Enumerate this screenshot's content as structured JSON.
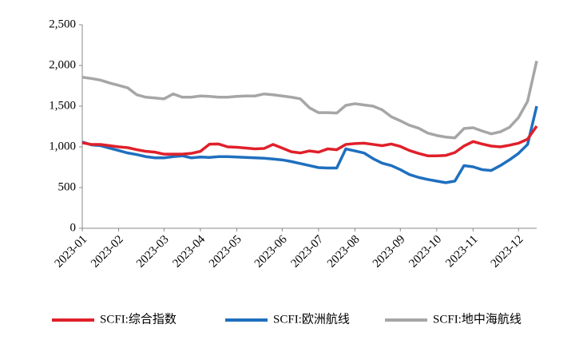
{
  "chart_data": {
    "type": "line",
    "categories": [
      "2023-01",
      null,
      null,
      null,
      "2023-02",
      null,
      null,
      null,
      null,
      "2023-03",
      null,
      null,
      null,
      "2023-04",
      null,
      null,
      null,
      "2023-05",
      null,
      null,
      null,
      null,
      "2023-06",
      null,
      null,
      null,
      "2023-07",
      null,
      null,
      null,
      "2023-08",
      null,
      null,
      null,
      null,
      "2023-09",
      null,
      null,
      null,
      "2023-10",
      null,
      null,
      null,
      "2023-11",
      null,
      null,
      null,
      null,
      "2023-12",
      null,
      null
    ],
    "series": [
      {
        "name": "SCFI:综合指数",
        "color": "#e0202a",
        "values": [
          1050,
          1030,
          1030,
          1015,
          1000,
          990,
          965,
          945,
          935,
          910,
          910,
          910,
          920,
          945,
          1033,
          1035,
          1000,
          995,
          985,
          975,
          980,
          1030,
          985,
          940,
          925,
          950,
          935,
          975,
          965,
          1030,
          1040,
          1045,
          1030,
          1015,
          1035,
          1005,
          955,
          920,
          890,
          890,
          895,
          930,
          1010,
          1065,
          1035,
          1010,
          1000,
          1020,
          1045,
          1095,
          1255
        ]
      },
      {
        "name": "SCFI:欧洲航线",
        "color": "#1f6fbf",
        "values": [
          1060,
          1025,
          1015,
          985,
          955,
          925,
          905,
          880,
          865,
          865,
          880,
          890,
          865,
          875,
          870,
          880,
          880,
          875,
          870,
          865,
          860,
          850,
          840,
          820,
          795,
          770,
          745,
          740,
          740,
          975,
          950,
          925,
          855,
          800,
          770,
          720,
          660,
          625,
          600,
          580,
          560,
          580,
          770,
          755,
          720,
          710,
          770,
          840,
          920,
          1030,
          1500
        ]
      },
      {
        "name": "SCFI:地中海航线",
        "color": "#a6a6a6",
        "values": [
          1855,
          1840,
          1820,
          1785,
          1755,
          1725,
          1640,
          1610,
          1600,
          1590,
          1650,
          1610,
          1610,
          1625,
          1620,
          1610,
          1610,
          1620,
          1625,
          1625,
          1650,
          1640,
          1625,
          1610,
          1590,
          1480,
          1420,
          1420,
          1415,
          1510,
          1530,
          1515,
          1500,
          1455,
          1370,
          1320,
          1265,
          1230,
          1170,
          1140,
          1120,
          1110,
          1225,
          1235,
          1195,
          1160,
          1185,
          1240,
          1360,
          1560,
          2055
        ]
      }
    ],
    "ylim": [
      0,
      2500
    ],
    "yticks": [
      0,
      500,
      {
        "value": 1000,
        "label": "1,000"
      },
      {
        "value": 1500,
        "label": "1,500"
      },
      {
        "value": 2000,
        "label": "2,000"
      },
      {
        "value": 2500,
        "label": "2,500"
      }
    ],
    "grid": false,
    "legend": "bottom"
  }
}
